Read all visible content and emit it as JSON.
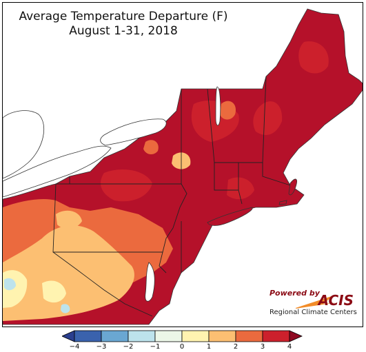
{
  "map": {
    "title": "Average Temperature Departure (F)",
    "subtitle": "August 1-31, 2018",
    "region": "Northeast United States",
    "colors": {
      "lt_-3": "#3a62ad",
      "-3_-2": "#6aa7d2",
      "-2_-1": "#bde3ec",
      "-1_0": "#ecf7e8",
      "0_1": "#fff3b0",
      "1_2": "#fcbf72",
      "2_3": "#eb6a3e",
      "3_4": "#cc202c",
      "gt_4": "#a10b27",
      "land_outline": "#333333",
      "lake": "#ffffff"
    }
  },
  "legend": {
    "ticks": [
      "−4",
      "−3",
      "−2",
      "−1",
      "0",
      "1",
      "2",
      "3",
      "4"
    ],
    "bins": [
      {
        "range": "< -4 (extension)",
        "color": "#2b3f8f"
      },
      {
        "range": "-4 to -3",
        "color": "#3a62ad"
      },
      {
        "range": "-3 to -2",
        "color": "#6aa7d2"
      },
      {
        "range": "-2 to -1",
        "color": "#bde3ec"
      },
      {
        "range": "-1 to 0",
        "color": "#ecf7e8"
      },
      {
        "range": "0 to 1",
        "color": "#fff3b0"
      },
      {
        "range": "1 to 2",
        "color": "#fcbf72"
      },
      {
        "range": "2 to 3",
        "color": "#eb6a3e"
      },
      {
        "range": "3 to 4",
        "color": "#cc202c"
      },
      {
        "range": "> 4 (extension)",
        "color": "#8f0a22"
      }
    ]
  },
  "logo": {
    "powered_by": "Powered by",
    "name": "ACIS",
    "org": "Regional Climate Centers"
  }
}
